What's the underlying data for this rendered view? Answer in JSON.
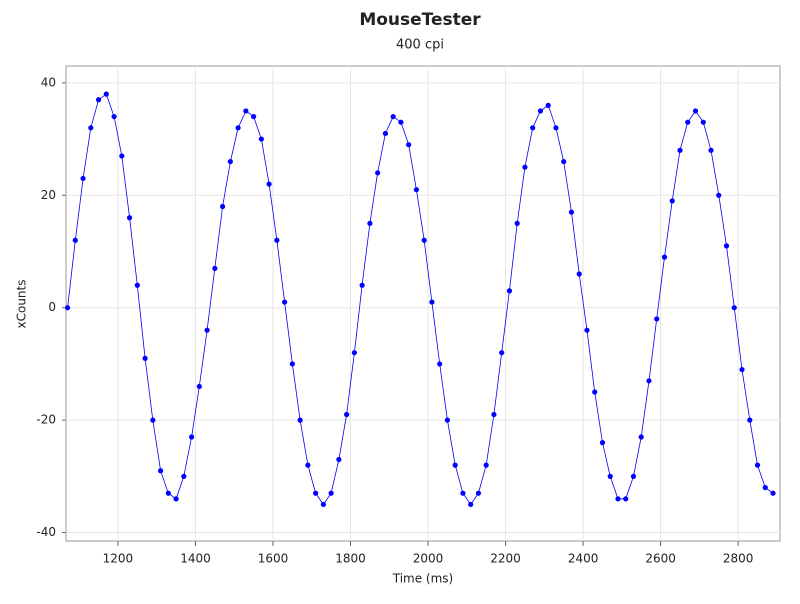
{
  "chart_data": {
    "type": "line",
    "title": "MouseTester",
    "subtitle": "400 cpi",
    "x_label": "Time (ms)",
    "y_label": "xCounts",
    "x": [
      1070,
      1090,
      1110,
      1130,
      1150,
      1170,
      1190,
      1210,
      1230,
      1250,
      1270,
      1290,
      1310,
      1330,
      1350,
      1370,
      1390,
      1410,
      1430,
      1450,
      1470,
      1490,
      1510,
      1530,
      1550,
      1570,
      1590,
      1610,
      1630,
      1650,
      1670,
      1690,
      1710,
      1730,
      1750,
      1770,
      1790,
      1810,
      1830,
      1850,
      1870,
      1890,
      1910,
      1930,
      1950,
      1970,
      1990,
      2010,
      2030,
      2050,
      2070,
      2090,
      2110,
      2130,
      2150,
      2170,
      2190,
      2210,
      2230,
      2250,
      2270,
      2290,
      2310,
      2330,
      2350,
      2370,
      2390,
      2410,
      2430,
      2450,
      2470,
      2490,
      2510,
      2530,
      2550,
      2570,
      2590,
      2610,
      2630,
      2650,
      2670,
      2690,
      2710,
      2730,
      2750,
      2770,
      2790,
      2810,
      2830,
      2850,
      2870,
      2890
    ],
    "values": [
      0,
      12,
      23,
      32,
      37,
      38,
      34,
      27,
      16,
      4,
      -9,
      -20,
      -29,
      -33,
      -34,
      -30,
      -23,
      -14,
      -4,
      7,
      18,
      26,
      32,
      35,
      34,
      30,
      22,
      12,
      1,
      -10,
      -20,
      -28,
      -33,
      -35,
      -33,
      -27,
      -19,
      -8,
      4,
      15,
      24,
      31,
      34,
      33,
      29,
      21,
      12,
      1,
      -10,
      -20,
      -28,
      -33,
      -35,
      -33,
      -28,
      -19,
      -8,
      3,
      15,
      25,
      32,
      35,
      36,
      32,
      26,
      17,
      6,
      -4,
      -15,
      -24,
      -30,
      -34,
      -34,
      -30,
      -23,
      -13,
      -2,
      9,
      19,
      28,
      33,
      35,
      33,
      28,
      20,
      11,
      0,
      -11,
      -20,
      -28,
      -32,
      -33
    ],
    "color": "#0000ff",
    "xlim": [
      1066,
      2908
    ],
    "xticks": [
      1200,
      1400,
      1600,
      1800,
      2000,
      2200,
      2400,
      2600,
      2800
    ],
    "ylim": [
      -41.5,
      43
    ],
    "yticks": [
      -40,
      -20,
      0,
      20,
      40
    ],
    "grid": true
  }
}
